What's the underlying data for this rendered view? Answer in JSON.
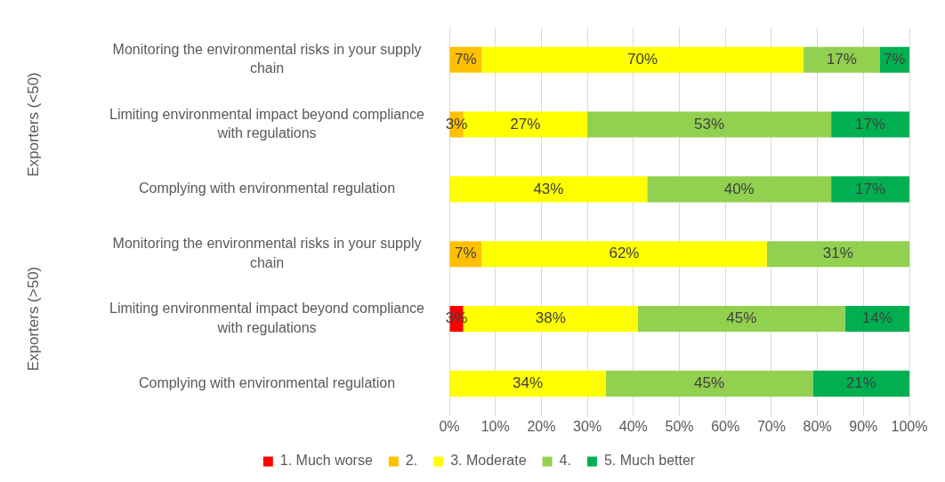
{
  "chart_data": {
    "type": "bar",
    "orientation": "horizontal",
    "stacked": true,
    "categories": [
      "Monitoring the environmental risks in your supply chain",
      "Limiting environmental impact beyond compliance with regulations",
      "Complying with environmental regulation",
      "Monitoring the environmental risks in your supply chain",
      "Limiting environmental impact beyond compliance with regulations",
      "Complying with environmental regulation"
    ],
    "series": [
      {
        "name": "1. Much worse",
        "color": "#ff0000",
        "values": [
          null,
          null,
          null,
          null,
          3,
          null
        ],
        "value_labels": [
          null,
          null,
          null,
          null,
          "3%",
          null
        ]
      },
      {
        "name": "2.",
        "color": "#ffc000",
        "values": [
          7,
          3,
          null,
          7,
          null,
          null
        ],
        "value_labels": [
          "7%",
          "3%",
          null,
          "7%",
          null,
          null
        ]
      },
      {
        "name": "3. Moderate",
        "color": "#ffff00",
        "values": [
          70,
          27,
          43,
          62,
          38,
          34
        ],
        "value_labels": [
          "70%",
          "27%",
          "43%",
          "62%",
          "38%",
          "34%"
        ]
      },
      {
        "name": "4.",
        "color": "#92d050",
        "values": [
          16.5,
          53,
          40,
          31,
          45,
          45
        ],
        "value_labels": [
          "17%",
          "53%",
          "40%",
          "31%",
          "45%",
          "45%"
        ]
      },
      {
        "name": "5. Much better",
        "color": "#00b050",
        "values": [
          6.5,
          17,
          17,
          null,
          14,
          21
        ],
        "value_labels": [
          "7%",
          "17%",
          "17%",
          null,
          "14%",
          "21%"
        ]
      }
    ],
    "xlim": [
      0,
      100
    ],
    "xticks": [
      {
        "value": 0,
        "label": "0%"
      },
      {
        "value": 10,
        "label": "10%"
      },
      {
        "value": 20,
        "label": "20%"
      },
      {
        "value": 30,
        "label": "30%"
      },
      {
        "value": 40,
        "label": "40%"
      },
      {
        "value": 50,
        "label": "50%"
      },
      {
        "value": 60,
        "label": "60%"
      },
      {
        "value": 70,
        "label": "70%"
      },
      {
        "value": 80,
        "label": "80%"
      },
      {
        "value": 90,
        "label": "90%"
      },
      {
        "value": 100,
        "label": "100%"
      }
    ],
    "grid": "x",
    "legend": "bottom",
    "annotations": [
      "Exporters (<50)",
      "Exporters (>50)"
    ]
  }
}
